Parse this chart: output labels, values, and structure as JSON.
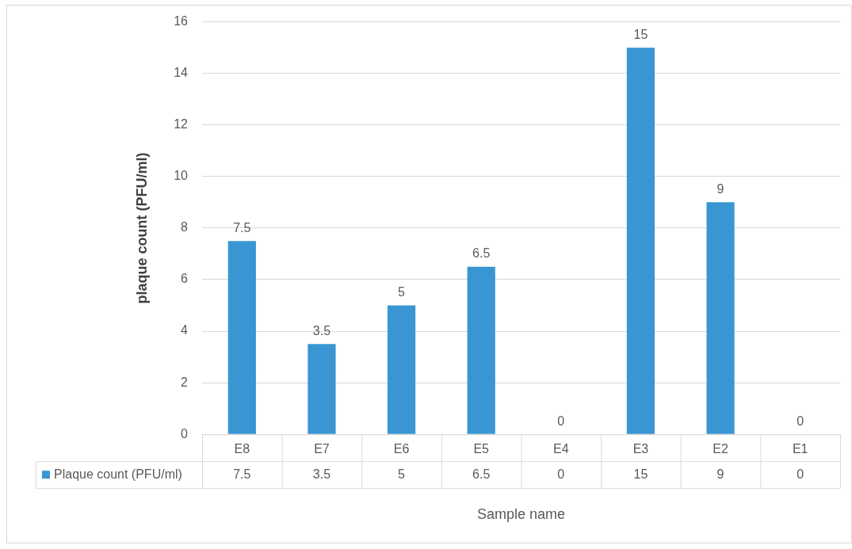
{
  "chart_data": {
    "type": "bar",
    "xlabel": "Sample name",
    "ylabel": "plaque count (PFU/ml)",
    "categories": [
      "E8",
      "E7",
      "E6",
      "E5",
      "E4",
      "E3",
      "E2",
      "E1"
    ],
    "series": [
      {
        "name": "Plaque count (PFU/ml)",
        "color": "#3a96d2",
        "values": [
          7.5,
          3.5,
          5,
          6.5,
          0,
          15,
          9,
          0
        ],
        "value_labels": [
          "7.5",
          "3.5",
          "5",
          "6.5",
          "0",
          "15",
          "9",
          "0"
        ]
      }
    ],
    "annotations": [
      "7.5",
      "3.5",
      "5",
      "6.5",
      "0",
      "15",
      "9",
      "0"
    ],
    "ylim": [
      0,
      16
    ],
    "yticks": [
      0,
      2,
      4,
      6,
      8,
      10,
      12,
      14,
      16
    ],
    "grid": "y",
    "data_labels": true,
    "legend": "bottom"
  }
}
